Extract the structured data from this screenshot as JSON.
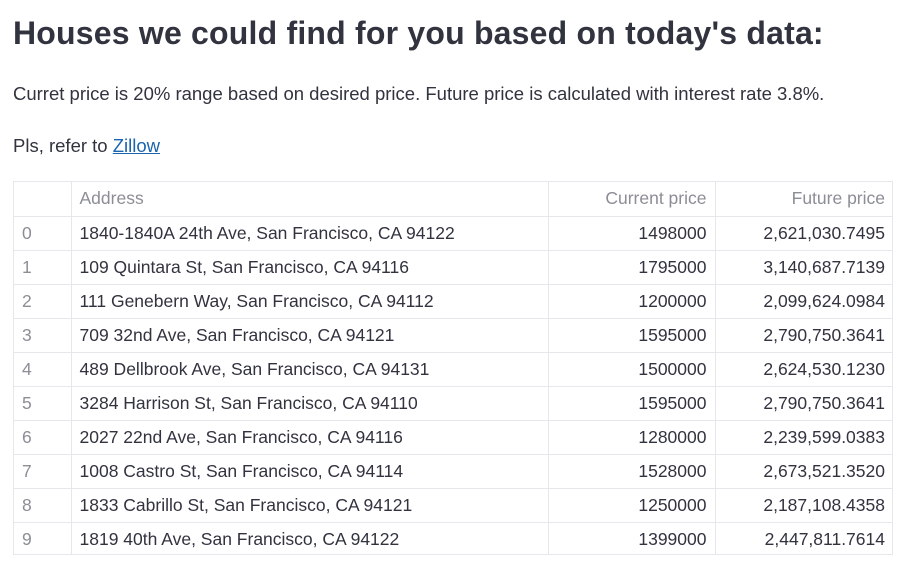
{
  "page": {
    "title": "Houses we could find for you based on today's data:",
    "description": "Curret price is 20% range based on desired price. Future price is calculated with interest rate 3.8%.",
    "reference_prefix": "Pls, refer to ",
    "reference_link": "Zillow"
  },
  "table": {
    "headers": {
      "index": "",
      "address": "Address",
      "current_price": "Current price",
      "future_price": "Future price"
    },
    "rows": [
      {
        "index": "0",
        "address": "1840-1840A 24th Ave, San Francisco, CA 94122",
        "current_price": "1498000",
        "future_price": "2,621,030.7495"
      },
      {
        "index": "1",
        "address": "109 Quintara St, San Francisco, CA 94116",
        "current_price": "1795000",
        "future_price": "3,140,687.7139"
      },
      {
        "index": "2",
        "address": "111 Genebern Way, San Francisco, CA 94112",
        "current_price": "1200000",
        "future_price": "2,099,624.0984"
      },
      {
        "index": "3",
        "address": "709 32nd Ave, San Francisco, CA 94121",
        "current_price": "1595000",
        "future_price": "2,790,750.3641"
      },
      {
        "index": "4",
        "address": "489 Dellbrook Ave, San Francisco, CA 94131",
        "current_price": "1500000",
        "future_price": "2,624,530.1230"
      },
      {
        "index": "5",
        "address": "3284 Harrison St, San Francisco, CA 94110",
        "current_price": "1595000",
        "future_price": "2,790,750.3641"
      },
      {
        "index": "6",
        "address": "2027 22nd Ave, San Francisco, CA 94116",
        "current_price": "1280000",
        "future_price": "2,239,599.0383"
      },
      {
        "index": "7",
        "address": "1008 Castro St, San Francisco, CA 94114",
        "current_price": "1528000",
        "future_price": "2,673,521.3520"
      },
      {
        "index": "8",
        "address": "1833 Cabrillo St, San Francisco, CA 94121",
        "current_price": "1250000",
        "future_price": "2,187,108.4358"
      },
      {
        "index": "9",
        "address": "1819 40th Ave, San Francisco, CA 94122",
        "current_price": "1399000",
        "future_price": "2,447,811.7614"
      }
    ]
  },
  "colors": {
    "text": "#31333f",
    "muted": "#8c8e96",
    "link": "#1a64ae",
    "grid_border": "#e6e7ea"
  }
}
